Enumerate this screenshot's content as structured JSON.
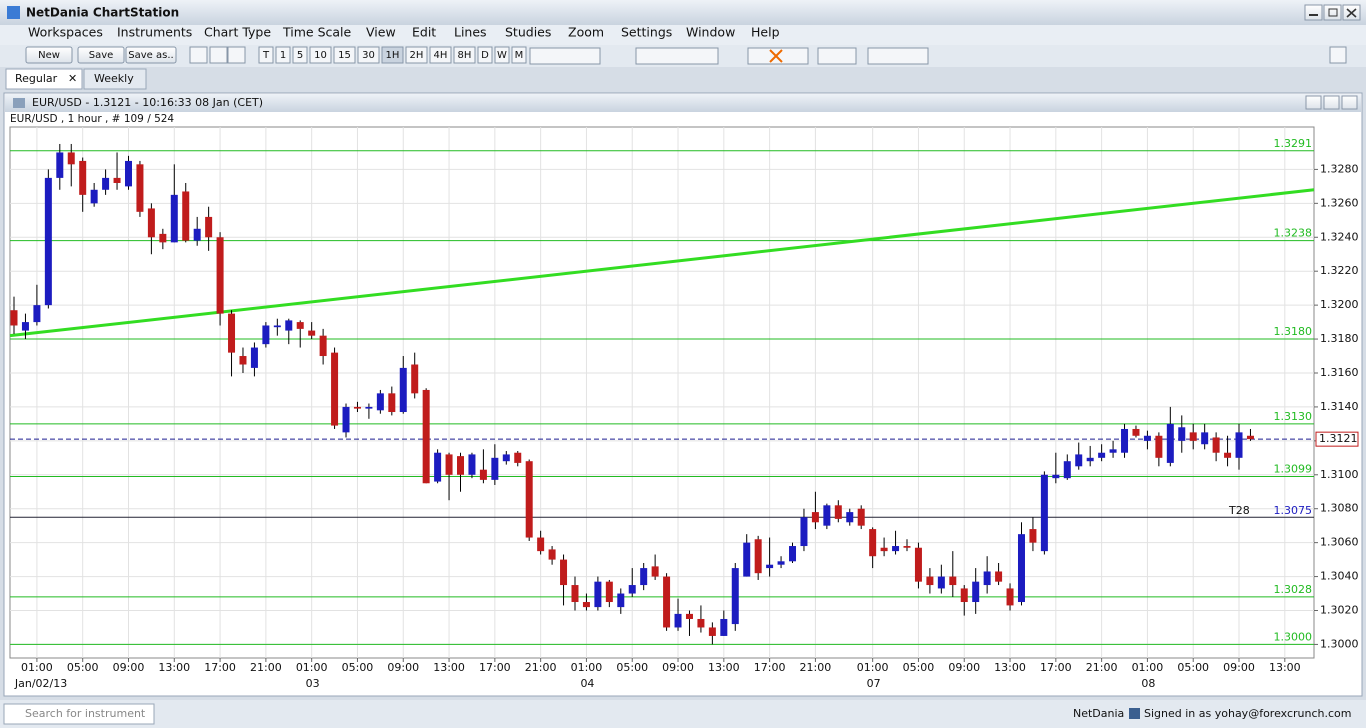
{
  "ui": {
    "app_title": "NetDania ChartStation",
    "menu": [
      "Workspaces",
      "Instruments",
      "Chart Type",
      "Time Scale",
      "View",
      "Edit",
      "Lines",
      "Studies",
      "Zoom",
      "Settings",
      "Window",
      "Help"
    ],
    "file_buttons": [
      "New",
      "Save",
      "Save as.."
    ],
    "interval_buttons": [
      "T",
      "1",
      "5",
      "10",
      "15",
      "30",
      "1H",
      "2H",
      "4H",
      "8H",
      "D",
      "W",
      "M"
    ],
    "tabs": [
      "Regular",
      "Weekly"
    ],
    "search_placeholder": "Search for instrument",
    "brand": "NetDania",
    "signed_in": "Signed in as yohay@forexcrunch.com"
  },
  "chart_data": {
    "type": "candlestick",
    "title": "EUR/USD - 1.3121 - 10:16:33  08 Jan (CET)",
    "subtitle": "EUR/USD , 1 hour , # 109 / 524",
    "up_color": "#1c1cc0",
    "down_color": "#c01c1c",
    "grid": true,
    "xlim": [
      -0.35,
      113.55
    ],
    "ylim": [
      1.2992,
      1.3305
    ],
    "yticks": [
      {
        "value": 1.3,
        "label": "1.3000"
      },
      {
        "value": 1.302,
        "label": "1.3020"
      },
      {
        "value": 1.304,
        "label": "1.3040"
      },
      {
        "value": 1.306,
        "label": "1.3060"
      },
      {
        "value": 1.308,
        "label": "1.3080"
      },
      {
        "value": 1.31,
        "label": "1.3100"
      },
      {
        "value": 1.312,
        "label": "1.3120"
      },
      {
        "value": 1.314,
        "label": "1.3140"
      },
      {
        "value": 1.316,
        "label": "1.3160"
      },
      {
        "value": 1.318,
        "label": "1.3180"
      },
      {
        "value": 1.32,
        "label": "1.3200"
      },
      {
        "value": 1.322,
        "label": "1.3220"
      },
      {
        "value": 1.324,
        "label": "1.3240"
      },
      {
        "value": 1.326,
        "label": "1.3260"
      },
      {
        "value": 1.328,
        "label": "1.3280"
      }
    ],
    "xticks": [
      {
        "value": 2,
        "label": "01:00"
      },
      {
        "value": 6,
        "label": "05:00"
      },
      {
        "value": 10,
        "label": "09:00"
      },
      {
        "value": 14,
        "label": "13:00"
      },
      {
        "value": 18,
        "label": "17:00"
      },
      {
        "value": 22,
        "label": "21:00"
      },
      {
        "value": 26,
        "label": "01:00"
      },
      {
        "value": 30,
        "label": "05:00"
      },
      {
        "value": 34,
        "label": "09:00"
      },
      {
        "value": 38,
        "label": "13:00"
      },
      {
        "value": 42,
        "label": "17:00"
      },
      {
        "value": 46,
        "label": "21:00"
      },
      {
        "value": 50,
        "label": "01:00"
      },
      {
        "value": 54,
        "label": "05:00"
      },
      {
        "value": 58,
        "label": "09:00"
      },
      {
        "value": 62,
        "label": "13:00"
      },
      {
        "value": 66,
        "label": "17:00"
      },
      {
        "value": 70,
        "label": "21:00"
      },
      {
        "value": 75,
        "label": "01:00"
      },
      {
        "value": 79,
        "label": "05:00"
      },
      {
        "value": 83,
        "label": "09:00"
      },
      {
        "value": 87,
        "label": "13:00"
      },
      {
        "value": 91,
        "label": "17:00"
      },
      {
        "value": 95,
        "label": "21:00"
      },
      {
        "value": 99,
        "label": "01:00"
      },
      {
        "value": 103,
        "label": "05:00"
      },
      {
        "value": 107,
        "label": "09:00"
      },
      {
        "value": 111,
        "label": "13:00"
      }
    ],
    "xdates": [
      {
        "value": 2,
        "label": "Jan/02/13"
      },
      {
        "value": 26,
        "label": "03"
      },
      {
        "value": 50,
        "label": "04"
      },
      {
        "value": 75,
        "label": "07"
      },
      {
        "value": 99,
        "label": "08"
      }
    ],
    "levels": [
      {
        "value": 1.3291,
        "label": "1.3291"
      },
      {
        "value": 1.3238,
        "label": "1.3238"
      },
      {
        "value": 1.318,
        "label": "1.3180"
      },
      {
        "value": 1.313,
        "label": "1.3130"
      },
      {
        "value": 1.3099,
        "label": "1.3099"
      },
      {
        "value": 1.3028,
        "label": "1.3028"
      },
      {
        "value": 1.3,
        "label": "1.3000"
      }
    ],
    "level_color": "#22bb22",
    "trendline": {
      "x": [
        -0.35,
        113.55
      ],
      "y": [
        1.3182,
        1.3268
      ],
      "color": "#33dd22"
    },
    "marker_line": {
      "value": 1.3075,
      "label": "1.3075",
      "name": "T28"
    },
    "last_price": {
      "value": 1.3121,
      "label": "1.3121"
    },
    "candles": {
      "open": [
        1.3197,
        1.3185,
        1.319,
        1.32,
        1.3275,
        1.329,
        1.3285,
        1.326,
        1.3268,
        1.3275,
        1.327,
        1.3283,
        1.3257,
        1.3242,
        1.3237,
        1.3267,
        1.3238,
        1.3252,
        1.324,
        1.3195,
        1.317,
        1.3163,
        1.3177,
        1.3187,
        1.3185,
        1.319,
        1.3185,
        1.3182,
        1.3172,
        1.3125,
        1.314,
        1.3139,
        1.3138,
        1.3148,
        1.3137,
        1.3165,
        1.315,
        1.3096,
        1.3112,
        1.3111,
        1.31,
        1.3103,
        1.3097,
        1.3108,
        1.3113,
        1.3108,
        1.3063,
        1.3056,
        1.305,
        1.3035,
        1.3025,
        1.3022,
        1.3037,
        1.3022,
        1.303,
        1.3035,
        1.3046,
        1.304,
        1.301,
        1.3018,
        1.3015,
        1.301,
        1.3005,
        1.3012,
        1.304,
        1.3062,
        1.3045,
        1.3047,
        1.3049,
        1.3058,
        1.3078,
        1.307,
        1.3082,
        1.3072,
        1.308,
        1.3068,
        1.3057,
        1.3055,
        1.3058,
        1.3057,
        1.304,
        1.3033,
        1.304,
        1.3033,
        1.3025,
        1.3035,
        1.3043,
        1.3033,
        1.3025,
        1.3068,
        1.3055,
        1.3098,
        1.3098,
        1.3105,
        1.3108,
        1.311,
        1.3113,
        1.3113,
        1.3127,
        1.312,
        1.3123,
        1.3107,
        1.312,
        1.3125,
        1.3118,
        1.3122,
        1.3113,
        1.311,
        1.3123
      ],
      "high": [
        1.3205,
        1.3195,
        1.3212,
        1.328,
        1.3295,
        1.3295,
        1.3287,
        1.3272,
        1.328,
        1.329,
        1.3288,
        1.3285,
        1.326,
        1.3245,
        1.3283,
        1.3272,
        1.3252,
        1.3258,
        1.3243,
        1.3197,
        1.3175,
        1.3178,
        1.319,
        1.3192,
        1.3192,
        1.3191,
        1.319,
        1.3186,
        1.3175,
        1.3142,
        1.3143,
        1.3142,
        1.315,
        1.3152,
        1.317,
        1.3172,
        1.3151,
        1.3115,
        1.3113,
        1.3113,
        1.3113,
        1.3115,
        1.3118,
        1.3114,
        1.3114,
        1.3109,
        1.3067,
        1.3058,
        1.3053,
        1.304,
        1.303,
        1.304,
        1.3038,
        1.3033,
        1.3045,
        1.3048,
        1.3053,
        1.3042,
        1.3027,
        1.302,
        1.3023,
        1.3013,
        1.302,
        1.3048,
        1.3065,
        1.3064,
        1.3063,
        1.3052,
        1.306,
        1.308,
        1.309,
        1.3083,
        1.3085,
        1.308,
        1.3082,
        1.3069,
        1.3063,
        1.3067,
        1.3062,
        1.306,
        1.3045,
        1.3047,
        1.3055,
        1.3035,
        1.3045,
        1.3052,
        1.3048,
        1.3036,
        1.3072,
        1.3075,
        1.3102,
        1.3113,
        1.3112,
        1.3119,
        1.3117,
        1.3118,
        1.312,
        1.313,
        1.3129,
        1.3126,
        1.3125,
        1.314,
        1.3135,
        1.313,
        1.313,
        1.3125,
        1.3123,
        1.313,
        1.3127
      ],
      "low": [
        1.3183,
        1.318,
        1.3188,
        1.3198,
        1.3268,
        1.327,
        1.3255,
        1.3258,
        1.3265,
        1.3268,
        1.3268,
        1.3252,
        1.323,
        1.3233,
        1.3237,
        1.3237,
        1.3235,
        1.3232,
        1.3188,
        1.3158,
        1.316,
        1.3158,
        1.3175,
        1.3182,
        1.3177,
        1.3175,
        1.318,
        1.3165,
        1.3127,
        1.3122,
        1.3137,
        1.3133,
        1.3136,
        1.3135,
        1.3136,
        1.3145,
        1.3095,
        1.3095,
        1.3085,
        1.309,
        1.3098,
        1.3095,
        1.3094,
        1.3106,
        1.3105,
        1.3061,
        1.3053,
        1.3047,
        1.3023,
        1.302,
        1.302,
        1.302,
        1.3022,
        1.3018,
        1.3028,
        1.3032,
        1.3038,
        1.3008,
        1.3008,
        1.3005,
        1.3007,
        1.3,
        1.3005,
        1.3008,
        1.304,
        1.3038,
        1.304,
        1.3045,
        1.3048,
        1.3055,
        1.3068,
        1.3068,
        1.3072,
        1.307,
        1.3068,
        1.3045,
        1.3052,
        1.3053,
        1.3055,
        1.3033,
        1.303,
        1.303,
        1.3028,
        1.3017,
        1.3018,
        1.303,
        1.3035,
        1.302,
        1.3023,
        1.3055,
        1.3053,
        1.3095,
        1.3097,
        1.3103,
        1.3105,
        1.3108,
        1.311,
        1.311,
        1.3122,
        1.3115,
        1.3105,
        1.3105,
        1.3113,
        1.3115,
        1.3115,
        1.3108,
        1.3105,
        1.3103,
        1.312
      ],
      "close": [
        1.3188,
        1.319,
        1.32,
        1.3275,
        1.329,
        1.3283,
        1.3265,
        1.3268,
        1.3275,
        1.3272,
        1.3285,
        1.3255,
        1.324,
        1.3237,
        1.3265,
        1.3238,
        1.3245,
        1.324,
        1.3195,
        1.3172,
        1.3165,
        1.3175,
        1.3188,
        1.3188,
        1.3191,
        1.3186,
        1.3182,
        1.317,
        1.3129,
        1.314,
        1.3139,
        1.314,
        1.3148,
        1.3137,
        1.3163,
        1.3148,
        1.3095,
        1.3113,
        1.31,
        1.31,
        1.3112,
        1.3097,
        1.311,
        1.3112,
        1.3107,
        1.3063,
        1.3055,
        1.305,
        1.3035,
        1.3025,
        1.3022,
        1.3037,
        1.3025,
        1.303,
        1.3035,
        1.3045,
        1.304,
        1.301,
        1.3018,
        1.3015,
        1.301,
        1.3005,
        1.3015,
        1.3045,
        1.306,
        1.3042,
        1.3047,
        1.3049,
        1.3058,
        1.3075,
        1.3072,
        1.3082,
        1.3074,
        1.3078,
        1.307,
        1.3052,
        1.3055,
        1.3058,
        1.3057,
        1.3037,
        1.3035,
        1.304,
        1.3035,
        1.3025,
        1.3037,
        1.3043,
        1.3037,
        1.3023,
        1.3065,
        1.306,
        1.31,
        1.31,
        1.3108,
        1.3112,
        1.311,
        1.3113,
        1.3115,
        1.3127,
        1.3123,
        1.3123,
        1.311,
        1.313,
        1.3128,
        1.312,
        1.3125,
        1.3113,
        1.311,
        1.3125,
        1.3121
      ]
    }
  }
}
